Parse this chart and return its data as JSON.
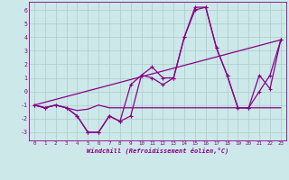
{
  "xlabel": "Windchill (Refroidissement éolien,°C)",
  "xlim": [
    -0.5,
    23.5
  ],
  "ylim": [
    -3.6,
    6.6
  ],
  "xticks": [
    0,
    1,
    2,
    3,
    4,
    5,
    6,
    7,
    8,
    9,
    10,
    11,
    12,
    13,
    14,
    15,
    16,
    17,
    18,
    19,
    20,
    21,
    22,
    23
  ],
  "yticks": [
    -3,
    -2,
    -1,
    0,
    1,
    2,
    3,
    4,
    5,
    6
  ],
  "bg_color": "#cce8e8",
  "line_color": "#880088",
  "grid_color": "#aacccc",
  "series": [
    {
      "x": [
        0,
        1,
        2,
        3,
        4,
        5,
        6,
        7,
        8,
        9,
        10,
        11,
        12,
        13,
        14,
        15,
        16,
        17,
        18,
        19,
        20,
        21,
        22,
        23
      ],
      "y": [
        -1,
        -1.2,
        -1,
        -1.2,
        -1.4,
        -1.3,
        -1,
        -1.2,
        -1.2,
        -1.2,
        -1.2,
        -1.2,
        -1.2,
        -1.2,
        -1.2,
        -1.2,
        -1.2,
        -1.2,
        -1.2,
        -1.2,
        -1.2,
        -1.2,
        -1.2,
        -1.2
      ],
      "marker": false,
      "linewidth": 0.9
    },
    {
      "x": [
        0,
        23
      ],
      "y": [
        -1,
        3.8
      ],
      "marker": false,
      "linewidth": 0.9
    },
    {
      "x": [
        0,
        1,
        2,
        3,
        4,
        5,
        6,
        7,
        8,
        9,
        10,
        11,
        12,
        13,
        14,
        15,
        16,
        17,
        18,
        19,
        20,
        21,
        22,
        23
      ],
      "y": [
        -1,
        -1.2,
        -1,
        -1.2,
        -1.8,
        -3.0,
        -3.0,
        -1.8,
        -2.2,
        -1.8,
        1.2,
        1.8,
        1.0,
        1.0,
        4.0,
        6.2,
        6.2,
        3.2,
        1.2,
        -1.2,
        -1.2,
        0.0,
        1.2,
        3.8
      ],
      "marker": true,
      "linewidth": 0.9
    },
    {
      "x": [
        0,
        1,
        2,
        3,
        4,
        5,
        6,
        7,
        8,
        9,
        10,
        11,
        12,
        13,
        14,
        15,
        16,
        17,
        18,
        19,
        20,
        21,
        22,
        23
      ],
      "y": [
        -1,
        -1.2,
        -1,
        -1.2,
        -1.8,
        -3.0,
        -3.0,
        -1.8,
        -2.2,
        0.5,
        1.2,
        1.0,
        0.5,
        1.0,
        4.0,
        6.0,
        6.2,
        3.2,
        1.2,
        -1.2,
        -1.2,
        1.2,
        0.2,
        3.8
      ],
      "marker": true,
      "linewidth": 0.9
    }
  ]
}
